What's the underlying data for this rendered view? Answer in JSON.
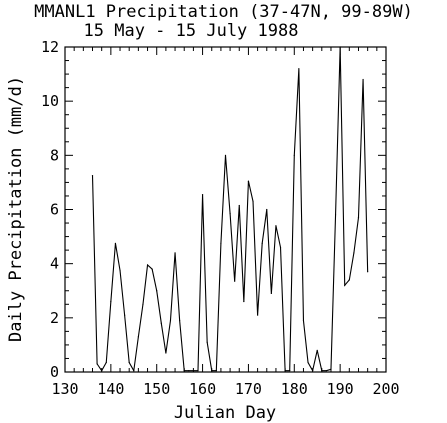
{
  "chart_data": {
    "type": "line",
    "title": "MMANL1 Precipitation (37-47N, 99-89W)",
    "subtitle": "15 May - 15 July 1988",
    "xlabel": "Julian Day",
    "ylabel": "Daily Precipitation (mm/d)",
    "xlim": [
      130,
      200
    ],
    "ylim": [
      0,
      12
    ],
    "xticks": [
      130,
      140,
      150,
      160,
      170,
      180,
      190,
      200
    ],
    "yticks": [
      0,
      2,
      4,
      6,
      8,
      10,
      12
    ],
    "grid": false,
    "line_color": "#000000",
    "series": [
      {
        "x": [
          136,
          137,
          138,
          139,
          140,
          141,
          142,
          143,
          144,
          145,
          146,
          147,
          148,
          149,
          150,
          151,
          152,
          153,
          154,
          155,
          156,
          157,
          158,
          159,
          160,
          161,
          162,
          163,
          164,
          165,
          166,
          167,
          168,
          169,
          170,
          171,
          172,
          173,
          174,
          175,
          176,
          177,
          178,
          179,
          180,
          181,
          182,
          183,
          184,
          185,
          186,
          187,
          188,
          189,
          190,
          191,
          192,
          193,
          194,
          195,
          196
        ],
        "y": [
          7.25,
          0.3,
          0.05,
          0.35,
          2.6,
          4.75,
          3.75,
          2.1,
          0.35,
          0.05,
          1.3,
          2.5,
          3.95,
          3.8,
          3.0,
          1.8,
          0.7,
          1.9,
          4.4,
          1.9,
          0.05,
          0.05,
          0.05,
          0.05,
          6.55,
          1.1,
          0.05,
          0.05,
          4.75,
          8.0,
          5.85,
          3.35,
          6.15,
          2.6,
          7.05,
          6.3,
          2.1,
          4.75,
          6.0,
          2.9,
          5.4,
          4.6,
          0.05,
          0.05,
          8.0,
          11.2,
          1.9,
          0.35,
          0.05,
          0.8,
          0.05,
          0.05,
          0.1,
          5.8,
          12.0,
          3.2,
          3.4,
          4.4,
          5.7,
          10.8,
          3.7
        ]
      }
    ]
  }
}
